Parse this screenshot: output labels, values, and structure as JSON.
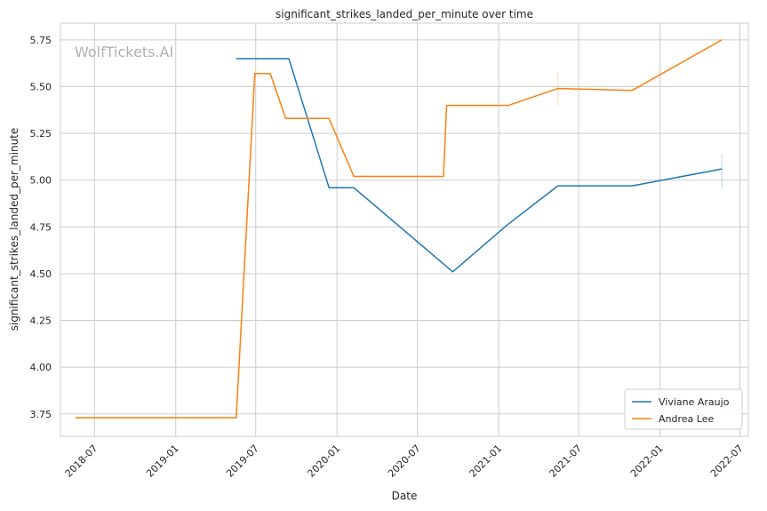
{
  "chart_data": {
    "type": "line",
    "title": "significant_strikes_landed_per_minute over time",
    "xlabel": "Date",
    "ylabel": "significant_strikes_landed_per_minute",
    "watermark": "WolfTickets.AI",
    "xlim": [
      "2018-04-15",
      "2022-07-20"
    ],
    "ylim": [
      3.63,
      5.84
    ],
    "x_ticks": [
      "2018-07",
      "2019-01",
      "2019-07",
      "2020-01",
      "2020-07",
      "2021-01",
      "2021-07",
      "2022-01",
      "2022-07"
    ],
    "y_ticks": [
      "3.75",
      "4.00",
      "4.25",
      "4.50",
      "4.75",
      "5.00",
      "5.25",
      "5.50",
      "5.75"
    ],
    "grid": true,
    "legend_position": "bottom-right",
    "series": [
      {
        "name": "Viviane Araujo",
        "color": "#1f77b4",
        "points": [
          {
            "x": "2019-05-18",
            "y": 5.65
          },
          {
            "x": "2019-09-14",
            "y": 5.65
          },
          {
            "x": "2019-12-14",
            "y": 4.96
          },
          {
            "x": "2020-02-08",
            "y": 4.96
          },
          {
            "x": "2020-09-19",
            "y": 4.51
          },
          {
            "x": "2020-09-19",
            "y": 4.51
          },
          {
            "x": "2021-01-20",
            "y": 4.76
          },
          {
            "x": "2021-05-15",
            "y": 4.97
          },
          {
            "x": "2021-10-30",
            "y": 4.97
          },
          {
            "x": "2022-05-21",
            "y": 5.06
          }
        ],
        "error_bar": {
          "x": "2022-05-21",
          "low": 4.96,
          "high": 5.14
        }
      },
      {
        "name": "Andrea Lee",
        "color": "#ff7f0e",
        "points": [
          {
            "x": "2018-05-19",
            "y": 3.73
          },
          {
            "x": "2019-05-18",
            "y": 3.73
          },
          {
            "x": "2019-06-29",
            "y": 5.57
          },
          {
            "x": "2019-08-03",
            "y": 5.57
          },
          {
            "x": "2019-09-07",
            "y": 5.33
          },
          {
            "x": "2019-12-14",
            "y": 5.33
          },
          {
            "x": "2020-02-08",
            "y": 5.02
          },
          {
            "x": "2020-08-29",
            "y": 5.02
          },
          {
            "x": "2020-09-05",
            "y": 5.4
          },
          {
            "x": "2021-01-23",
            "y": 5.4
          },
          {
            "x": "2021-05-15",
            "y": 5.49
          },
          {
            "x": "2021-10-30",
            "y": 5.48
          },
          {
            "x": "2022-05-21",
            "y": 5.75
          }
        ],
        "error_bar": {
          "x": "2021-05-15",
          "low": 5.4,
          "high": 5.58
        }
      }
    ]
  }
}
